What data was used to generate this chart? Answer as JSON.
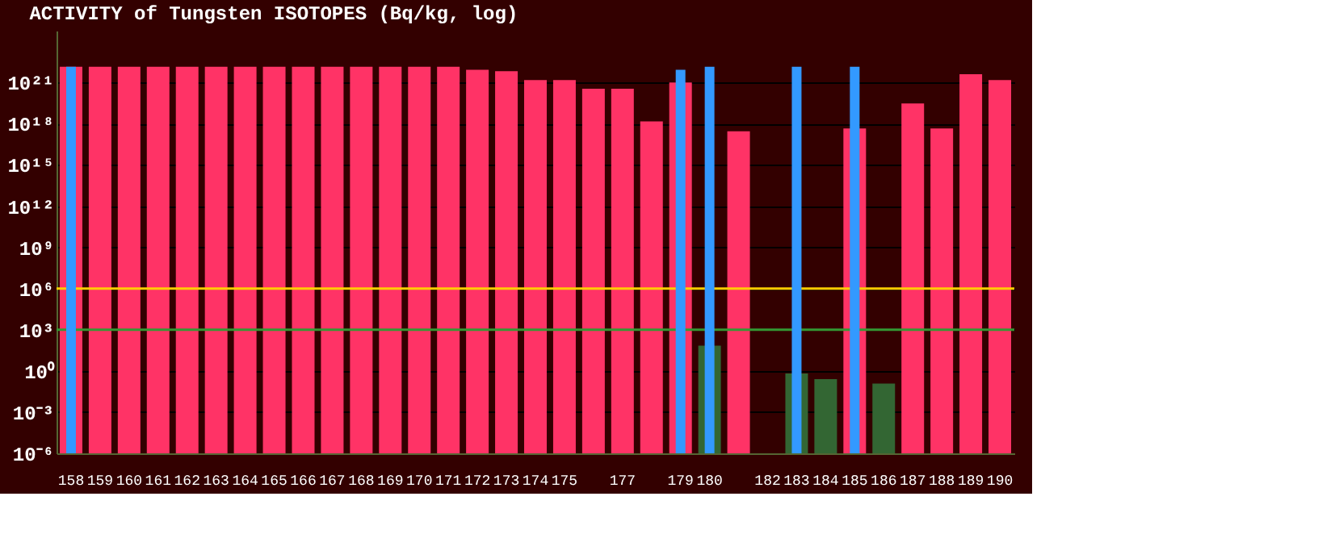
{
  "chart_data": {
    "type": "bar",
    "title": "ACTIVITY of Tungsten ISOTOPES (Bq/kg, log)",
    "categories": [
      "158",
      "159",
      "160",
      "161",
      "162",
      "163",
      "164",
      "165",
      "166",
      "167",
      "168",
      "169",
      "170",
      "171",
      "172",
      "173",
      "174",
      "175",
      null,
      "177",
      null,
      "179",
      "180",
      null,
      "182",
      "183",
      "184",
      "185",
      "186",
      "187",
      "188",
      "189",
      "190"
    ],
    "series": [
      {
        "color": "#ff3366",
        "values": [
          1.4e+22,
          1.4e+22,
          1.4e+22,
          1.4e+22,
          1.4e+22,
          1.4e+22,
          1.4e+22,
          1.4e+22,
          1.4e+22,
          1.4e+22,
          1.4e+22,
          1.4e+22,
          1.4e+22,
          1.4e+22,
          8.5e+21,
          6.6e+21,
          1.5e+21,
          1.5e+21,
          3.5e+20,
          3.5e+20,
          1.5e+18,
          1e+21,
          null,
          2.8e+17,
          null,
          null,
          null,
          4.6e+17,
          null,
          3e+19,
          4.6e+17,
          4e+21,
          1.5e+21
        ]
      },
      {
        "color": "#336633",
        "values": [
          null,
          null,
          null,
          null,
          null,
          null,
          null,
          null,
          null,
          null,
          null,
          null,
          null,
          null,
          null,
          null,
          null,
          null,
          null,
          null,
          null,
          null,
          70,
          null,
          null,
          0.66,
          0.25,
          null,
          0.12,
          null,
          null,
          null,
          null
        ]
      },
      {
        "color": "#3399ff",
        "values": [
          1.4e+22,
          null,
          null,
          null,
          null,
          null,
          null,
          null,
          null,
          null,
          null,
          null,
          null,
          null,
          null,
          null,
          null,
          null,
          null,
          null,
          null,
          8.5e+21,
          1.4e+22,
          null,
          null,
          1.4e+22,
          null,
          1.4e+22,
          null,
          null,
          null,
          null,
          null
        ]
      }
    ],
    "log": true,
    "ylim": [
      1e-06,
      6e+24
    ],
    "yticks": [
      {
        "value": 1e-06,
        "label": "10⁻⁶"
      },
      {
        "value": 0.001,
        "label": "10⁻³"
      },
      {
        "value": 1,
        "label": "10⁰"
      },
      {
        "value": 1000,
        "label": "10³"
      },
      {
        "value": 1000000.0,
        "label": "10⁶"
      },
      {
        "value": 1000000000.0,
        "label": "10⁹"
      },
      {
        "value": 1000000000000.0,
        "label": "10¹²"
      },
      {
        "value": 1000000000000000.0,
        "label": "10¹⁵"
      },
      {
        "value": 1e+18,
        "label": "10¹⁸"
      },
      {
        "value": 1e+21,
        "label": "10²¹"
      }
    ],
    "grid": "y",
    "ref_lines": [
      {
        "axis": "y",
        "value": 1000000.0,
        "color": "#ffcc00"
      },
      {
        "axis": "y",
        "value": 1000,
        "color": "#339933"
      }
    ]
  }
}
